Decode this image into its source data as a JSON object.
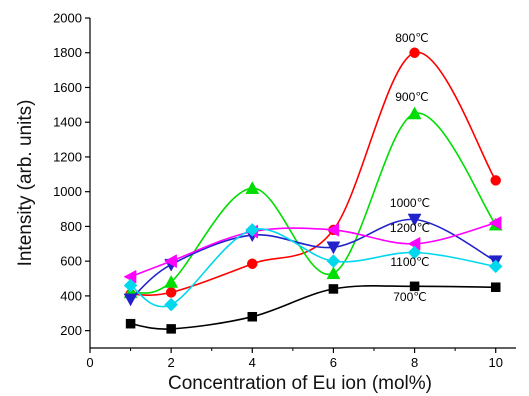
{
  "chart_data": {
    "type": "line",
    "xlabel": "Concentration of Eu ion (mol%)",
    "ylabel": "Intensity (arb. units)",
    "xlim": [
      0,
      10.5
    ],
    "ylim": [
      100,
      2000
    ],
    "xticks": [
      0,
      2,
      4,
      6,
      8,
      10
    ],
    "yticks": [
      200,
      400,
      600,
      800,
      1000,
      1200,
      1400,
      1600,
      1800,
      2000
    ],
    "series": [
      {
        "name": "800℃",
        "color": "#ff0000",
        "marker": "circle",
        "x": [
          1,
          2,
          4,
          6,
          8,
          10
        ],
        "y": [
          410,
          420,
          585,
          780,
          1800,
          1065
        ]
      },
      {
        "name": "900℃",
        "color": "#00dd00",
        "marker": "triangle-up",
        "x": [
          1,
          2,
          4,
          6,
          8,
          10
        ],
        "y": [
          420,
          480,
          1020,
          530,
          1450,
          810
        ]
      },
      {
        "name": "1000℃",
        "color": "#2222cc",
        "marker": "triangle-down",
        "x": [
          1,
          2,
          4,
          6,
          8,
          10
        ],
        "y": [
          380,
          580,
          750,
          680,
          840,
          600
        ]
      },
      {
        "name": "1200℃",
        "color": "#ff00ff",
        "marker": "triangle-left",
        "x": [
          1,
          2,
          4,
          6,
          8,
          10
        ],
        "y": [
          510,
          600,
          770,
          780,
          700,
          820
        ]
      },
      {
        "name": "1100℃",
        "color": "#00d8ee",
        "marker": "diamond",
        "x": [
          1,
          2,
          4,
          6,
          8,
          10
        ],
        "y": [
          460,
          350,
          780,
          600,
          650,
          570
        ]
      },
      {
        "name": "700℃",
        "color": "#000000",
        "marker": "square",
        "x": [
          1,
          2,
          4,
          6,
          8,
          10
        ],
        "y": [
          240,
          210,
          280,
          440,
          455,
          450
        ]
      }
    ],
    "annotations": [
      "800℃",
      "900℃",
      "1000℃",
      "1200℃",
      "1100℃",
      "700℃"
    ],
    "grid": false,
    "legend": "none"
  }
}
